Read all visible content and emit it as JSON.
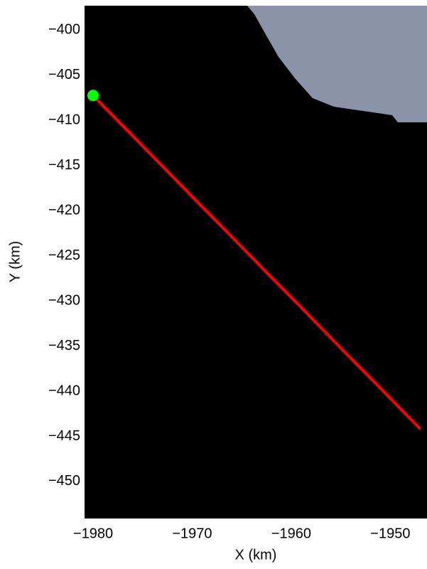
{
  "chart_data": {
    "type": "line",
    "x_label": "X (km)",
    "y_label": "Y (km)",
    "xlim": [
      -1980.86,
      -1946.3
    ],
    "ylim": [
      -454.1,
      -397.3
    ],
    "xticks": [
      {
        "value": -1980,
        "label": "−1980"
      },
      {
        "value": -1970,
        "label": "−1970"
      },
      {
        "value": -1960,
        "label": "−1960"
      },
      {
        "value": -1950,
        "label": "−1950"
      }
    ],
    "yticks": [
      {
        "value": -400,
        "label": "−400"
      },
      {
        "value": -405,
        "label": "−405"
      },
      {
        "value": -410,
        "label": "−410"
      },
      {
        "value": -415,
        "label": "−415"
      },
      {
        "value": -420,
        "label": "−420"
      },
      {
        "value": -425,
        "label": "−425"
      },
      {
        "value": -430,
        "label": "−430"
      },
      {
        "value": -435,
        "label": "−435"
      },
      {
        "value": -440,
        "label": "−440"
      },
      {
        "value": -445,
        "label": "−445"
      },
      {
        "value": -450,
        "label": "−450"
      }
    ],
    "background": "#000000",
    "series": [
      {
        "color": "#ff0000",
        "x": [
          -1980,
          -1946.98
        ],
        "y": [
          -407.24,
          -444.17
        ]
      },
      {
        "color": "#00ff00",
        "marker": "o",
        "x": [
          -1980
        ],
        "y": [
          -407.24
        ]
      }
    ]
  }
}
